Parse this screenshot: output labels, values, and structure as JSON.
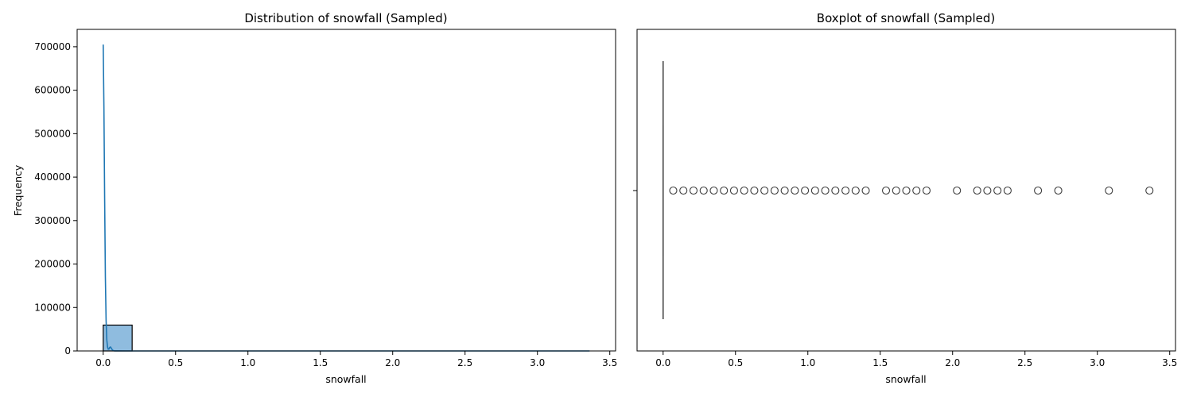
{
  "chart_data": [
    {
      "type": "histogram",
      "title": "Distribution of snowfall (Sampled)",
      "xlabel": "snowfall",
      "ylabel": "Frequency",
      "xlim": [
        -0.18,
        3.54
      ],
      "ylim": [
        0,
        740000
      ],
      "xticks": [
        0.0,
        0.5,
        1.0,
        1.5,
        2.0,
        2.5,
        3.0,
        3.5
      ],
      "xtick_labels": [
        "0.0",
        "0.5",
        "1.0",
        "1.5",
        "2.0",
        "2.5",
        "3.0",
        "3.5"
      ],
      "yticks": [
        0,
        100000,
        200000,
        300000,
        400000,
        500000,
        600000,
        700000
      ],
      "ytick_labels": [
        "0",
        "100000",
        "200000",
        "300000",
        "400000",
        "500000",
        "600000",
        "700000"
      ],
      "bins": [
        {
          "x0": 0.0,
          "x1": 0.2,
          "count": 59500
        },
        {
          "x0": 0.2,
          "x1": 0.4,
          "count": 300
        },
        {
          "x0": 0.4,
          "x1": 0.6,
          "count": 120
        },
        {
          "x0": 0.6,
          "x1": 0.8,
          "count": 60
        },
        {
          "x0": 0.8,
          "x1": 1.0,
          "count": 30
        },
        {
          "x0": 1.0,
          "x1": 1.2,
          "count": 15
        },
        {
          "x0": 1.2,
          "x1": 1.4,
          "count": 10
        },
        {
          "x0": 1.4,
          "x1": 1.6,
          "count": 4
        },
        {
          "x0": 1.6,
          "x1": 1.8,
          "count": 5
        },
        {
          "x0": 1.8,
          "x1": 2.0,
          "count": 2
        },
        {
          "x0": 2.0,
          "x1": 2.2,
          "count": 2
        },
        {
          "x0": 2.2,
          "x1": 2.4,
          "count": 3
        },
        {
          "x0": 2.4,
          "x1": 2.6,
          "count": 1
        },
        {
          "x0": 2.6,
          "x1": 2.8,
          "count": 1
        },
        {
          "x0": 2.8,
          "x1": 3.0,
          "count": 0
        },
        {
          "x0": 3.0,
          "x1": 3.2,
          "count": 1
        },
        {
          "x0": 3.2,
          "x1": 3.36,
          "count": 1
        }
      ],
      "kde": {
        "x": [
          0.0,
          0.005,
          0.01,
          0.015,
          0.02,
          0.025,
          0.03,
          0.035,
          0.04,
          0.045,
          0.05,
          0.055,
          0.06,
          0.065,
          0.07,
          0.075,
          0.08,
          0.09,
          0.1,
          0.15,
          0.3,
          0.6,
          1.0,
          2.0,
          3.36
        ],
        "y": [
          705000,
          560000,
          350000,
          170000,
          70000,
          25000,
          9000,
          4000,
          4500,
          8000,
          9000,
          7000,
          4000,
          1800,
          800,
          400,
          200,
          80,
          30,
          10,
          5,
          2,
          1,
          0,
          0
        ]
      },
      "colors": {
        "bar_fill": "#8fbcdf",
        "bar_edge": "#000000",
        "kde": "#1f77b4"
      }
    },
    {
      "type": "boxplot",
      "title": "Boxplot of snowfall (Sampled)",
      "xlabel": "snowfall",
      "xlim": [
        -0.18,
        3.54
      ],
      "xticks": [
        0.0,
        0.5,
        1.0,
        1.5,
        2.0,
        2.5,
        3.0,
        3.5
      ],
      "xtick_labels": [
        "0.0",
        "0.5",
        "1.0",
        "1.5",
        "2.0",
        "2.5",
        "3.0",
        "3.5"
      ],
      "median": 0.0,
      "q1": 0.0,
      "q3": 0.0,
      "whisker_low": 0.0,
      "whisker_high": 0.0,
      "outliers": [
        0.07,
        0.14,
        0.21,
        0.28,
        0.35,
        0.42,
        0.49,
        0.56,
        0.63,
        0.7,
        0.77,
        0.84,
        0.91,
        0.98,
        1.05,
        1.12,
        1.19,
        1.26,
        1.33,
        1.4,
        1.54,
        1.61,
        1.68,
        1.75,
        1.82,
        2.03,
        2.17,
        2.24,
        2.31,
        2.38,
        2.59,
        2.73,
        3.08,
        3.36
      ],
      "colors": {
        "box_line": "#3f3f3f",
        "marker_edge": "#3f3f3f"
      }
    }
  ]
}
